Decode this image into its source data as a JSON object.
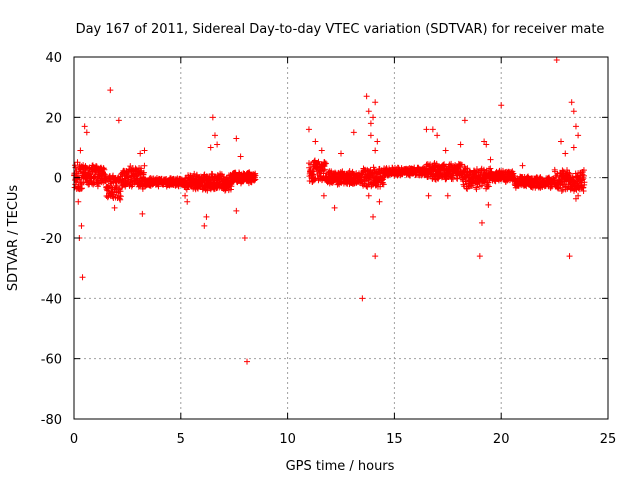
{
  "chart_data": {
    "type": "scatter",
    "title": "Day 167 of 2011, Sidereal Day-to-day VTEC variation (SDTVAR) for receiver mate",
    "xlabel": "GPS time / hours",
    "ylabel": "SDTVAR / TECUs",
    "xlim": [
      0,
      25
    ],
    "ylim": [
      -80,
      40
    ],
    "xticks": [
      0,
      5,
      10,
      15,
      20,
      25
    ],
    "yticks": [
      -80,
      -60,
      -40,
      -20,
      0,
      20,
      40
    ],
    "xtick_labels": [
      "0",
      "5",
      "10",
      "15",
      "20",
      "25"
    ],
    "ytick_labels": [
      "-80",
      "-60",
      "-40",
      "-20",
      "0",
      "20",
      "40"
    ],
    "grid": true,
    "marker": "+",
    "color": "#ff0000",
    "series": [
      {
        "name": "SDTVAR",
        "segments": [
          {
            "x0": 0.0,
            "x1": 0.4,
            "y_center": 0.0,
            "y_spread": 6
          },
          {
            "x0": 0.4,
            "x1": 1.5,
            "y_center": 1.0,
            "y_spread": 4
          },
          {
            "x0": 1.5,
            "x1": 2.2,
            "y_center": -3.0,
            "y_spread": 5
          },
          {
            "x0": 2.2,
            "x1": 3.3,
            "y_center": 0.0,
            "y_spread": 4
          },
          {
            "x0": 3.3,
            "x1": 5.2,
            "y_center": -1.5,
            "y_spread": 1.5
          },
          {
            "x0": 5.2,
            "x1": 7.4,
            "y_center": -1.5,
            "y_spread": 3
          },
          {
            "x0": 7.4,
            "x1": 8.5,
            "y_center": 0.0,
            "y_spread": 2
          },
          {
            "x0": 11.0,
            "x1": 11.8,
            "y_center": 2.0,
            "y_spread": 4
          },
          {
            "x0": 11.8,
            "x1": 13.5,
            "y_center": 0.0,
            "y_spread": 2.5
          },
          {
            "x0": 13.5,
            "x1": 14.5,
            "y_center": 0.0,
            "y_spread": 4
          },
          {
            "x0": 14.5,
            "x1": 16.5,
            "y_center": 2.0,
            "y_spread": 1.5
          },
          {
            "x0": 16.5,
            "x1": 18.2,
            "y_center": 2.0,
            "y_spread": 3
          },
          {
            "x0": 18.2,
            "x1": 19.5,
            "y_center": 0.0,
            "y_spread": 4
          },
          {
            "x0": 19.5,
            "x1": 20.6,
            "y_center": 0.5,
            "y_spread": 2
          },
          {
            "x0": 20.6,
            "x1": 22.5,
            "y_center": -1.5,
            "y_spread": 2
          },
          {
            "x0": 22.5,
            "x1": 23.9,
            "y_center": -1.0,
            "y_spread": 4
          }
        ],
        "outliers": [
          [
            0.2,
            -8
          ],
          [
            0.25,
            -20
          ],
          [
            0.35,
            -16
          ],
          [
            0.4,
            -33
          ],
          [
            0.5,
            17
          ],
          [
            0.6,
            15
          ],
          [
            0.3,
            9
          ],
          [
            1.7,
            29
          ],
          [
            2.1,
            19
          ],
          [
            1.9,
            -10
          ],
          [
            3.2,
            -12
          ],
          [
            3.1,
            8
          ],
          [
            3.3,
            9
          ],
          [
            5.2,
            -6
          ],
          [
            5.3,
            -8
          ],
          [
            6.1,
            -16
          ],
          [
            6.2,
            -13
          ],
          [
            6.5,
            20
          ],
          [
            6.6,
            14
          ],
          [
            6.7,
            11
          ],
          [
            6.4,
            10
          ],
          [
            7.6,
            13
          ],
          [
            7.6,
            -11
          ],
          [
            8.0,
            -20
          ],
          [
            8.1,
            -61
          ],
          [
            7.8,
            7
          ],
          [
            11.0,
            16
          ],
          [
            11.3,
            12
          ],
          [
            11.6,
            9
          ],
          [
            11.7,
            -6
          ],
          [
            12.2,
            -10
          ],
          [
            12.5,
            8
          ],
          [
            13.1,
            15
          ],
          [
            13.5,
            -40
          ],
          [
            13.7,
            27
          ],
          [
            13.8,
            22
          ],
          [
            13.9,
            18
          ],
          [
            14.0,
            20
          ],
          [
            14.1,
            25
          ],
          [
            13.8,
            -6
          ],
          [
            14.0,
            -13
          ],
          [
            14.1,
            -26
          ],
          [
            14.2,
            12
          ],
          [
            14.3,
            -8
          ],
          [
            13.9,
            14
          ],
          [
            14.1,
            9
          ],
          [
            16.5,
            16
          ],
          [
            16.6,
            -6
          ],
          [
            16.8,
            16
          ],
          [
            17.0,
            14
          ],
          [
            17.4,
            9
          ],
          [
            17.5,
            -6
          ],
          [
            18.3,
            19
          ],
          [
            18.1,
            11
          ],
          [
            19.0,
            -26
          ],
          [
            19.1,
            -15
          ],
          [
            19.3,
            11
          ],
          [
            19.4,
            -9
          ],
          [
            19.2,
            12
          ],
          [
            19.5,
            6
          ],
          [
            20.0,
            24
          ],
          [
            21.0,
            4
          ],
          [
            22.6,
            39
          ],
          [
            22.8,
            12
          ],
          [
            23.0,
            8
          ],
          [
            23.2,
            -26
          ],
          [
            23.3,
            25
          ],
          [
            23.4,
            22
          ],
          [
            23.5,
            17
          ],
          [
            23.6,
            14
          ],
          [
            23.5,
            -7
          ],
          [
            23.6,
            -6
          ],
          [
            23.4,
            10
          ]
        ]
      }
    ]
  }
}
